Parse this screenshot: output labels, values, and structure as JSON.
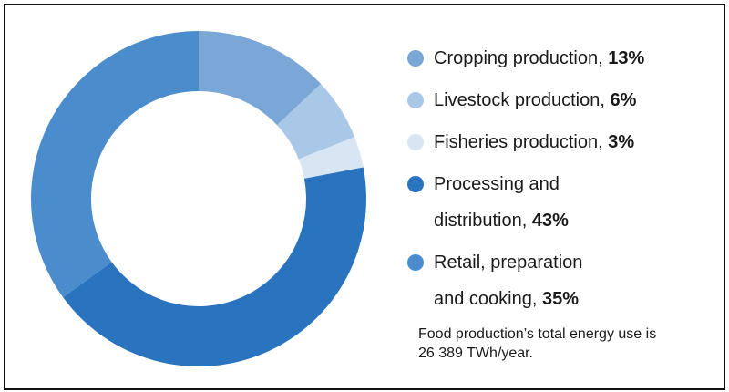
{
  "chart_data": {
    "type": "donut",
    "categories": [
      "Cropping production,",
      "Livestock production,",
      "Fisheries production,",
      "Processing and distribution,",
      "Retail, preparation and cooking,"
    ],
    "values": [
      13,
      6,
      3,
      43,
      35
    ],
    "value_labels": [
      "13%",
      "6%",
      "3%",
      "43%",
      "35%"
    ],
    "colors": [
      "#7aa7d6",
      "#a9c7e7",
      "#d8e6f4",
      "#2a74bf",
      "#4b8dcc"
    ],
    "note": "Food production’s total energy use is 26 389 TWh/year."
  }
}
